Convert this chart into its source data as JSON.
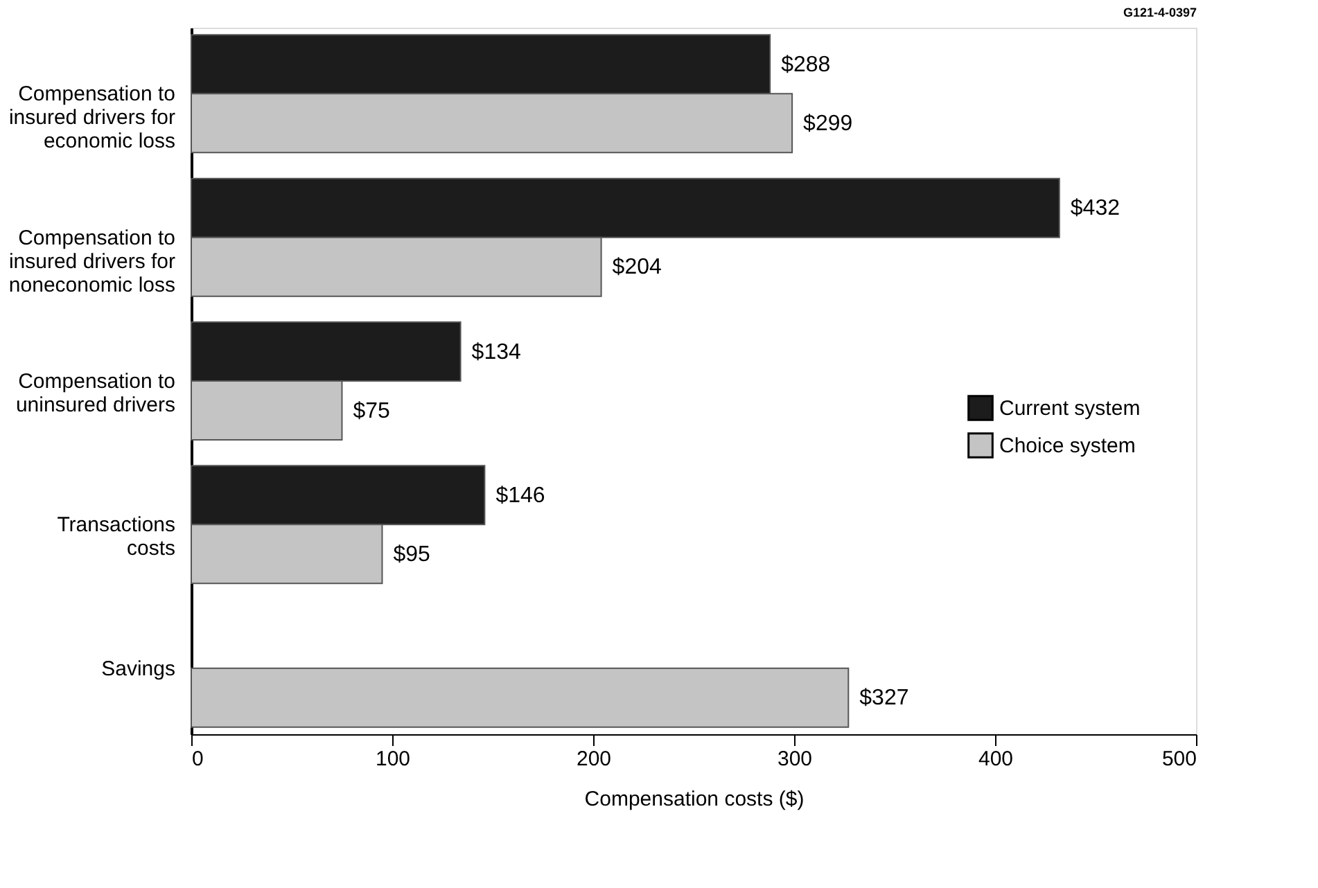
{
  "chart_data": {
    "type": "bar",
    "orientation": "horizontal",
    "categories": [
      "Compensation to\ninsured drivers for\neconomic loss",
      "Compensation to\ninsured drivers for\nnoneconomic loss",
      "Compensation to\nuninsured drivers",
      "Transactions\ncosts",
      "Savings"
    ],
    "series": [
      {
        "name": "Current system",
        "color": "#1c1c1c",
        "values": [
          288,
          432,
          134,
          146,
          null
        ],
        "value_labels": [
          "$288",
          "$432",
          "$134",
          "$146",
          null
        ]
      },
      {
        "name": "Choice system",
        "color": "#c4c4c4",
        "values": [
          299,
          204,
          75,
          95,
          327
        ],
        "value_labels": [
          "$299",
          "$204",
          "$75",
          "$95",
          "$327"
        ]
      }
    ],
    "xlabel": "Compensation costs ($)",
    "xlim": [
      0,
      500
    ],
    "xticks": [
      0,
      100,
      200,
      300,
      400,
      500
    ],
    "grid": false,
    "legend": "right",
    "annotations": [
      "G121-4-0397"
    ]
  }
}
